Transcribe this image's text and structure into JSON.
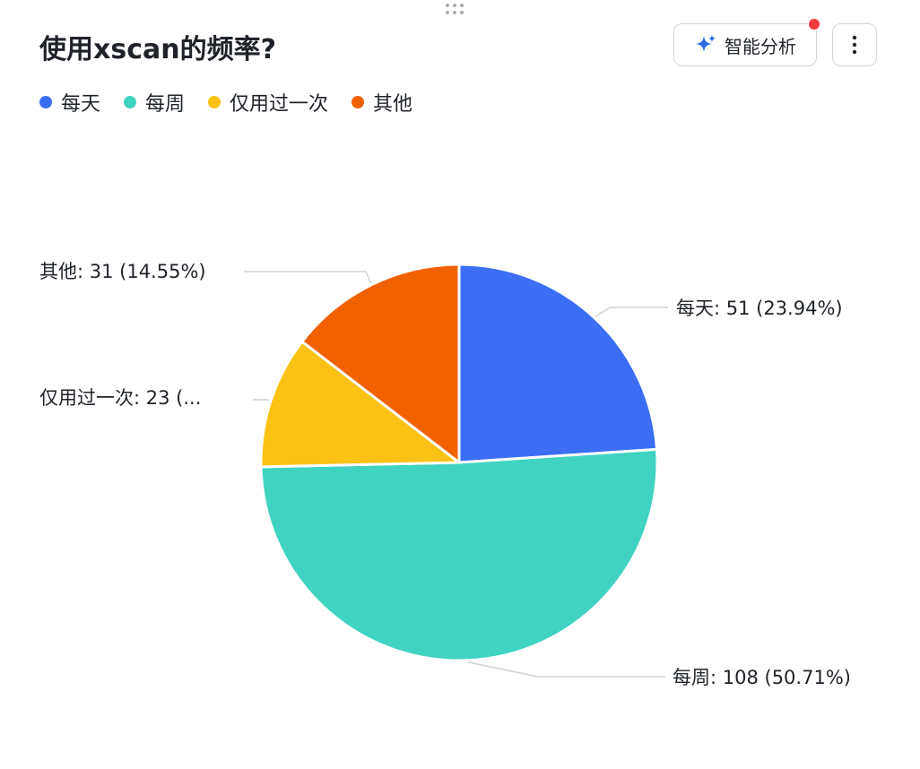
{
  "header": {
    "title": "使用xscan的频率?",
    "ai_button_label": "智能分析"
  },
  "icons": {
    "drag": "drag-handle-icon",
    "ai": "sparkle-icon",
    "more": "more-vertical-icon"
  },
  "colors": {
    "每天": "#3B6EF5",
    "每周": "#40D3C2",
    "仅用过一次": "#FAC215",
    "其他": "#F26100",
    "ai_icon": "#2E6BE6",
    "notification_dot": "#F23C3C"
  },
  "legend": [
    {
      "label": "每天",
      "color": "#3B6EF5"
    },
    {
      "label": "每周",
      "color": "#40D3C2"
    },
    {
      "label": "仅用过一次",
      "color": "#FAC215"
    },
    {
      "label": "其他",
      "color": "#F26100"
    }
  ],
  "chart_data": {
    "type": "pie",
    "categories": [
      "每天",
      "每周",
      "仅用过一次",
      "其他"
    ],
    "values": [
      51,
      108,
      23,
      31
    ],
    "percentages": [
      23.94,
      50.71,
      10.8,
      14.55
    ],
    "labels": [
      "每天: 51 (23.94%)",
      "每周: 108 (50.71%)",
      "仅用过一次: 23 (...",
      "其他: 31 (14.55%)"
    ],
    "legend_position": "top-left",
    "start_angle": "12 o'clock",
    "direction": "clockwise"
  }
}
